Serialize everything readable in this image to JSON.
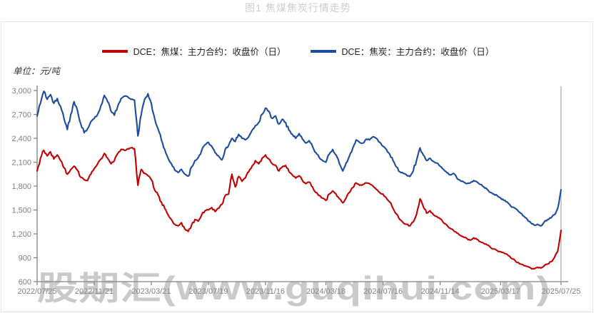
{
  "title": "图1 焦煤焦炭行情走势",
  "unit_label": "单位：元/吨",
  "watermark": "股期汇(www.guqihui.com)",
  "legend": [
    {
      "label": "DCE：焦煤：主力合约：收盘价（日）",
      "color": "#c00000"
    },
    {
      "label": "DCE：焦炭：主力合约：收盘价（日）",
      "color": "#1c4ca0"
    }
  ],
  "colors": {
    "coal_red": "#c00000",
    "coke_blue": "#1c4ca0",
    "axis_gray": "#808080",
    "cursor_gray": "#a8a8a8",
    "title_gray": "#cbced3"
  },
  "chart_data": {
    "type": "line",
    "title": "图1 焦煤焦炭行情走势",
    "ylabel": "单位：元/吨",
    "ylim": [
      600,
      3000
    ],
    "grid": false,
    "legend_position": "top-center",
    "y_tick_labels": [
      "3,000",
      "2,700",
      "2,400",
      "2,100",
      "1,800",
      "1,500",
      "1,200",
      "900",
      "600"
    ],
    "y_tick_values": [
      3000,
      2700,
      2400,
      2100,
      1800,
      1500,
      1200,
      900,
      600
    ],
    "x_tick_labels": [
      "2022/07/25",
      "2022/11/21",
      "2023/03/21",
      "2023/07/19",
      "2023/11/16",
      "2024/03/18",
      "2024/07/16",
      "2024/11/14",
      "2025/03/17",
      "2025/07/25"
    ],
    "x_tick_indices": [
      0,
      17,
      34,
      51,
      68,
      86,
      103,
      120,
      138,
      156
    ],
    "series": [
      {
        "name": "DCE：焦煤：主力合约：收盘价（日）",
        "color": "#c00000",
        "values": [
          1990,
          2150,
          2250,
          2180,
          2230,
          2140,
          2190,
          2120,
          2030,
          1950,
          2010,
          2050,
          2000,
          1910,
          1880,
          1870,
          1950,
          2020,
          2080,
          2140,
          2210,
          2150,
          2080,
          2120,
          2210,
          2260,
          2250,
          2270,
          2280,
          2270,
          1810,
          2010,
          1960,
          1930,
          1880,
          1750,
          1690,
          1600,
          1520,
          1440,
          1380,
          1320,
          1300,
          1340,
          1260,
          1230,
          1310,
          1380,
          1360,
          1440,
          1490,
          1500,
          1530,
          1480,
          1520,
          1570,
          1680,
          1700,
          1950,
          1790,
          1920,
          1860,
          1900,
          1980,
          2050,
          2120,
          2080,
          2150,
          2190,
          2140,
          2080,
          2060,
          1990,
          2040,
          2060,
          1980,
          1940,
          1900,
          1930,
          1870,
          1830,
          1850,
          1790,
          1720,
          1680,
          1650,
          1620,
          1700,
          1740,
          1700,
          1640,
          1590,
          1650,
          1720,
          1780,
          1840,
          1810,
          1820,
          1840,
          1830,
          1800,
          1760,
          1720,
          1700,
          1650,
          1600,
          1520,
          1450,
          1380,
          1340,
          1320,
          1300,
          1350,
          1450,
          1640,
          1540,
          1460,
          1490,
          1440,
          1420,
          1390,
          1340,
          1310,
          1270,
          1240,
          1210,
          1180,
          1160,
          1140,
          1120,
          1150,
          1130,
          1100,
          1080,
          1060,
          1030,
          1010,
          990,
          975,
          960,
          940,
          900,
          880,
          840,
          820,
          800,
          790,
          770,
          760,
          780,
          770,
          800,
          820,
          850,
          900,
          980,
          1245
        ]
      },
      {
        "name": "DCE：焦炭：主力合约：收盘价（日）",
        "color": "#1c4ca0",
        "values": [
          2680,
          2840,
          2990,
          2890,
          2950,
          2840,
          2900,
          2800,
          2650,
          2510,
          2700,
          2860,
          2750,
          2580,
          2470,
          2520,
          2610,
          2650,
          2700,
          2810,
          2940,
          2860,
          2740,
          2690,
          2800,
          2900,
          2930,
          2920,
          2890,
          2880,
          2430,
          2700,
          2890,
          2960,
          2840,
          2650,
          2520,
          2380,
          2260,
          2150,
          2080,
          2000,
          1970,
          2010,
          1950,
          1925,
          2040,
          2120,
          2160,
          2250,
          2320,
          2350,
          2300,
          2220,
          2180,
          2130,
          2260,
          2310,
          2400,
          2360,
          2450,
          2400,
          2380,
          2420,
          2500,
          2560,
          2600,
          2700,
          2780,
          2740,
          2650,
          2680,
          2580,
          2640,
          2600,
          2500,
          2450,
          2400,
          2460,
          2390,
          2340,
          2370,
          2300,
          2220,
          2160,
          2120,
          2100,
          2200,
          2260,
          2190,
          2080,
          1990,
          2090,
          2180,
          2280,
          2380,
          2350,
          2340,
          2390,
          2380,
          2420,
          2400,
          2350,
          2300,
          2260,
          2200,
          2120,
          2040,
          1980,
          1960,
          1940,
          1920,
          1990,
          2130,
          2280,
          2190,
          2120,
          2150,
          2110,
          2090,
          2050,
          2010,
          1970,
          1940,
          1960,
          1900,
          1870,
          1850,
          1830,
          1840,
          1870,
          1850,
          1820,
          1790,
          1760,
          1720,
          1700,
          1680,
          1650,
          1620,
          1600,
          1550,
          1530,
          1500,
          1460,
          1420,
          1380,
          1340,
          1310,
          1320,
          1300,
          1350,
          1380,
          1400,
          1440,
          1520,
          1755
        ]
      }
    ]
  }
}
